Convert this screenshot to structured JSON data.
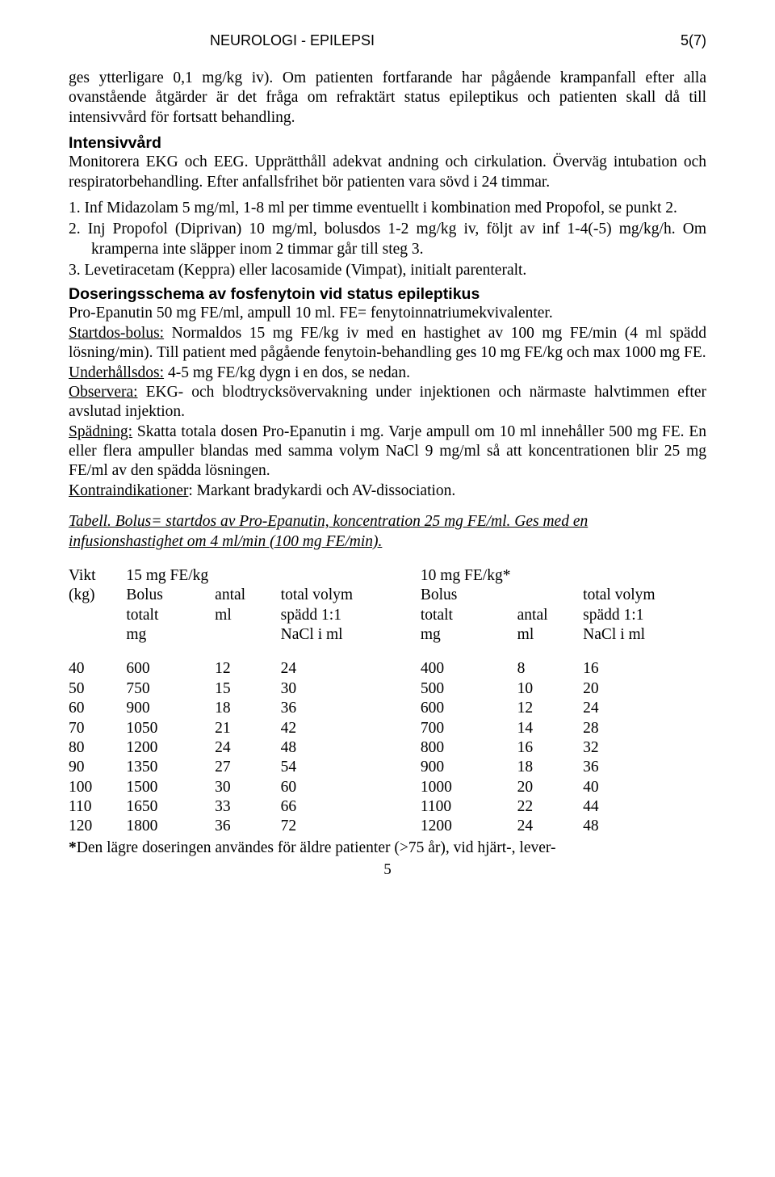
{
  "header": {
    "title": "NEUROLOGI - EPILEPSI",
    "page_indicator": "5(7)"
  },
  "para1": "ges ytterligare 0,1 mg/kg iv). Om patienten fortfarande har pågående krampanfall efter alla ovanstående åtgärder är det fråga om refraktärt status epileptikus och patienten skall då till intensivvård för fortsatt behandling.",
  "h_intensiv": "Intensivvård",
  "para_intensiv": "Monitorera EKG och EEG. Upprätthåll adekvat andning och cirkulation. Överväg intubation och respiratorbehandling. Efter anfallsfrihet bör patienten vara sövd i 24 timmar.",
  "list": [
    "1. Inf Midazolam 5 mg/ml, 1-8 ml per timme eventuellt i kombination med Propofol, se punkt 2.",
    "2. Inj Propofol (Diprivan) 10 mg/ml, bolusdos 1-2 mg/kg iv, följt av inf 1-4(-5) mg/kg/h. Om kramperna inte släpper inom 2 timmar går till steg 3.",
    "3. Levetiracetam (Keppra) eller lacosamide (Vimpat), initialt parenteralt."
  ],
  "h_dosering": "Doseringsschema av fosfenytoin vid status epileptikus",
  "dos_line1": "Pro-Epanutin 50 mg FE/ml, ampull 10 ml. FE= fenytoinnatriumekvivalenter.",
  "dos_start_label": "Startdos-bolus:",
  "dos_start_text": " Normaldos 15 mg FE/kg iv med en hastighet av 100 mg FE/min (4 ml spädd lösning/min). Till patient med pågående fenytoin-behandling ges 10 mg FE/kg och max 1000 mg FE.",
  "dos_under_label": "Underhållsdos:",
  "dos_under_text": " 4-5 mg FE/kg dygn i en dos, se nedan.",
  "dos_obs_label": "Observera:",
  "dos_obs_text": " EKG- och blodtrycksövervakning under injektionen och närmaste halvtimmen efter avslutad injektion.",
  "dos_spad_label": "Spädning:",
  "dos_spad_text": " Skatta totala dosen Pro-Epanutin i mg. Varje ampull om 10 ml innehåller 500 mg FE. En eller flera ampuller blandas med samma volym NaCl 9 mg/ml så att koncentrationen blir 25 mg FE/ml av den spädda lösningen.",
  "dos_kontra_label": "Kontraindikationer",
  "dos_kontra_text": ": Markant bradykardi och AV-dissociation.",
  "table_caption": "Tabell. Bolus= startdos av Pro-Epanutin, koncentration 25 mg FE/ml. Ges med en infusionshastighet om 4 ml/min (100 mg FE/min).",
  "tbl": {
    "h1": [
      "Vikt",
      "15 mg FE/kg",
      "",
      "",
      "10 mg FE/kg*",
      "",
      ""
    ],
    "h2": [
      "(kg)",
      "Bolus",
      "antal",
      "total volym",
      "Bolus",
      "",
      "total volym"
    ],
    "h3": [
      "",
      "totalt",
      "ml",
      "spädd 1:1",
      "totalt",
      "antal",
      "spädd 1:1"
    ],
    "h4": [
      "",
      "mg",
      "",
      "NaCl i ml",
      "mg",
      "ml",
      "NaCl i ml"
    ],
    "rows": [
      [
        "40",
        "600",
        "12",
        "24",
        "400",
        "8",
        "16"
      ],
      [
        "50",
        "750",
        "15",
        "30",
        "500",
        "10",
        "20"
      ],
      [
        "60",
        "900",
        "18",
        "36",
        "600",
        "12",
        "24"
      ],
      [
        "70",
        "1050",
        "21",
        "42",
        "700",
        "14",
        "28"
      ],
      [
        "80",
        "1200",
        "24",
        "48",
        "800",
        "16",
        "32"
      ],
      [
        "90",
        "1350",
        "27",
        "54",
        "900",
        "18",
        "36"
      ],
      [
        "100",
        "1500",
        "30",
        "60",
        "1000",
        "20",
        "40"
      ],
      [
        "110",
        "1650",
        "33",
        "66",
        "1100",
        "22",
        "44"
      ],
      [
        "120",
        "1800",
        "36",
        "72",
        "1200",
        "24",
        "48"
      ]
    ],
    "col_widths": [
      "70px",
      "100px",
      "80px",
      "170px",
      "100px",
      "80px",
      "150px"
    ]
  },
  "footnote_star": "*",
  "footnote": "Den lägre doseringen användes för äldre patienter (>75 år), vid hjärt-, lever-",
  "page_number": "5"
}
